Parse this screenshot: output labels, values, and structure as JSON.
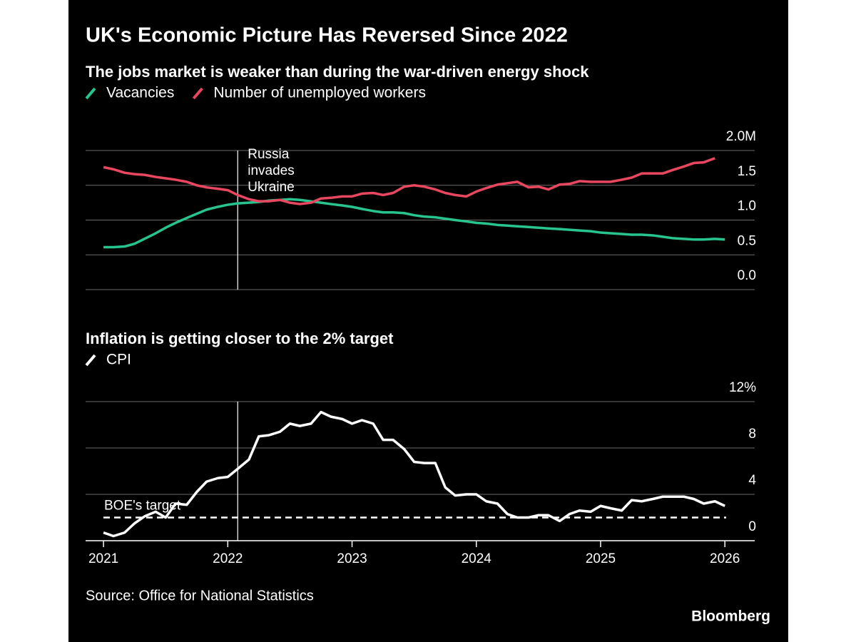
{
  "title": "UK's Economic Picture Has Reversed Since 2022",
  "chart_data": [
    {
      "type": "line",
      "subtitle": "The jobs market is weaker than during the war-driven energy shock",
      "x": [
        2021,
        2021.08,
        2021.17,
        2021.25,
        2021.33,
        2021.42,
        2021.5,
        2021.58,
        2021.67,
        2021.75,
        2021.83,
        2021.92,
        2022,
        2022.08,
        2022.17,
        2022.25,
        2022.33,
        2022.42,
        2022.5,
        2022.58,
        2022.67,
        2022.75,
        2022.83,
        2022.92,
        2023,
        2023.08,
        2023.17,
        2023.25,
        2023.33,
        2023.42,
        2023.5,
        2023.58,
        2023.67,
        2023.75,
        2023.83,
        2023.92,
        2024,
        2024.08,
        2024.17,
        2024.25,
        2024.33,
        2024.42,
        2024.5,
        2024.58,
        2024.67,
        2024.75,
        2024.83,
        2024.92,
        2025,
        2025.08,
        2025.17,
        2025.25,
        2025.33,
        2025.42,
        2025.5,
        2025.58,
        2025.67,
        2025.75,
        2025.83,
        2025.92,
        2026
      ],
      "series": [
        {
          "name": "Vacancies",
          "color": "#27c48f",
          "values": [
            0.61,
            0.61,
            0.62,
            0.66,
            0.73,
            0.81,
            0.89,
            0.96,
            1.03,
            1.09,
            1.15,
            1.19,
            1.22,
            1.24,
            1.25,
            1.26,
            1.28,
            1.29,
            1.3,
            1.29,
            1.27,
            1.25,
            1.23,
            1.21,
            1.19,
            1.16,
            1.13,
            1.11,
            1.11,
            1.1,
            1.07,
            1.05,
            1.04,
            1.02,
            1.0,
            0.98,
            0.96,
            0.95,
            0.93,
            0.92,
            0.91,
            0.9,
            0.89,
            0.88,
            0.87,
            0.86,
            0.85,
            0.84,
            0.82,
            0.81,
            0.8,
            0.79,
            0.79,
            0.78,
            0.76,
            0.74,
            0.73,
            0.72,
            0.72,
            0.73,
            0.72
          ]
        },
        {
          "name": "Number of unemployed workers",
          "color": "#e8475f",
          "values": [
            1.76,
            1.73,
            1.68,
            1.66,
            1.65,
            1.62,
            1.6,
            1.58,
            1.55,
            1.5,
            1.47,
            1.45,
            1.43,
            1.36,
            1.3,
            1.27,
            1.27,
            1.29,
            1.25,
            1.23,
            1.25,
            1.31,
            1.32,
            1.34,
            1.34,
            1.38,
            1.39,
            1.36,
            1.39,
            1.48,
            1.5,
            1.48,
            1.44,
            1.39,
            1.36,
            1.34,
            1.41,
            1.46,
            1.51,
            1.53,
            1.55,
            1.47,
            1.48,
            1.44,
            1.51,
            1.52,
            1.56,
            1.55,
            1.55,
            1.55,
            1.58,
            1.61,
            1.67,
            1.67,
            1.67,
            1.72,
            1.77,
            1.82,
            1.83,
            1.89,
            null
          ]
        }
      ],
      "xlim": [
        2020.856,
        2026.24
      ],
      "ylim": [
        0,
        2
      ],
      "yticks": [
        {
          "value": 0,
          "label": "0.0"
        },
        0.5,
        {
          "value": 1,
          "label": "1.0"
        },
        1.5,
        {
          "value": 2,
          "label": "2.0M"
        }
      ],
      "grid": true,
      "annotation": {
        "x": 2022.08,
        "lines": [
          "Russia",
          "invades",
          "Ukraine"
        ]
      }
    },
    {
      "type": "line",
      "subtitle": "Inflation is getting closer to the 2% target",
      "x": [
        2021,
        2021.08,
        2021.17,
        2021.25,
        2021.33,
        2021.42,
        2021.5,
        2021.58,
        2021.67,
        2021.75,
        2021.83,
        2021.92,
        2022,
        2022.08,
        2022.17,
        2022.25,
        2022.33,
        2022.42,
        2022.5,
        2022.58,
        2022.67,
        2022.75,
        2022.83,
        2022.92,
        2023,
        2023.08,
        2023.17,
        2023.25,
        2023.33,
        2023.42,
        2023.5,
        2023.58,
        2023.67,
        2023.75,
        2023.83,
        2023.92,
        2024,
        2024.08,
        2024.17,
        2024.25,
        2024.33,
        2024.42,
        2024.5,
        2024.58,
        2024.67,
        2024.75,
        2024.83,
        2024.92,
        2025,
        2025.08,
        2025.17,
        2025.25,
        2025.33,
        2025.42,
        2025.5,
        2025.58,
        2025.67,
        2025.75,
        2025.83,
        2025.92,
        2026
      ],
      "series": [
        {
          "name": "CPI",
          "color": "#ffffff",
          "values": [
            0.7,
            0.4,
            0.7,
            1.5,
            2.1,
            2.5,
            2.0,
            3.2,
            3.1,
            4.2,
            5.1,
            5.4,
            5.5,
            6.2,
            7.0,
            9.0,
            9.1,
            9.4,
            10.1,
            9.9,
            10.1,
            11.1,
            10.7,
            10.5,
            10.1,
            10.4,
            10.1,
            8.7,
            8.7,
            7.9,
            6.8,
            6.7,
            6.7,
            4.6,
            3.9,
            4.0,
            4.0,
            3.4,
            3.2,
            2.3,
            2.0,
            2.0,
            2.2,
            2.2,
            1.7,
            2.3,
            2.6,
            2.5,
            3.0,
            2.8,
            2.6,
            3.5,
            3.4,
            3.6,
            3.8,
            3.8,
            3.8,
            3.6,
            3.2,
            3.4,
            3.0
          ]
        }
      ],
      "xlim": [
        2020.856,
        2026.24
      ],
      "xticks": [
        2021,
        2022,
        2023,
        2024,
        2025,
        2026
      ],
      "ylim": [
        0,
        12
      ],
      "yticks": [
        0,
        4,
        8,
        {
          "value": 12,
          "label": "12%"
        }
      ],
      "grid": true,
      "annotation": {
        "x": 2022.08
      },
      "target": {
        "label": "BOE's target",
        "value": 2
      }
    }
  ],
  "source": "Source: Office for National Statistics",
  "brand": "Bloomberg"
}
